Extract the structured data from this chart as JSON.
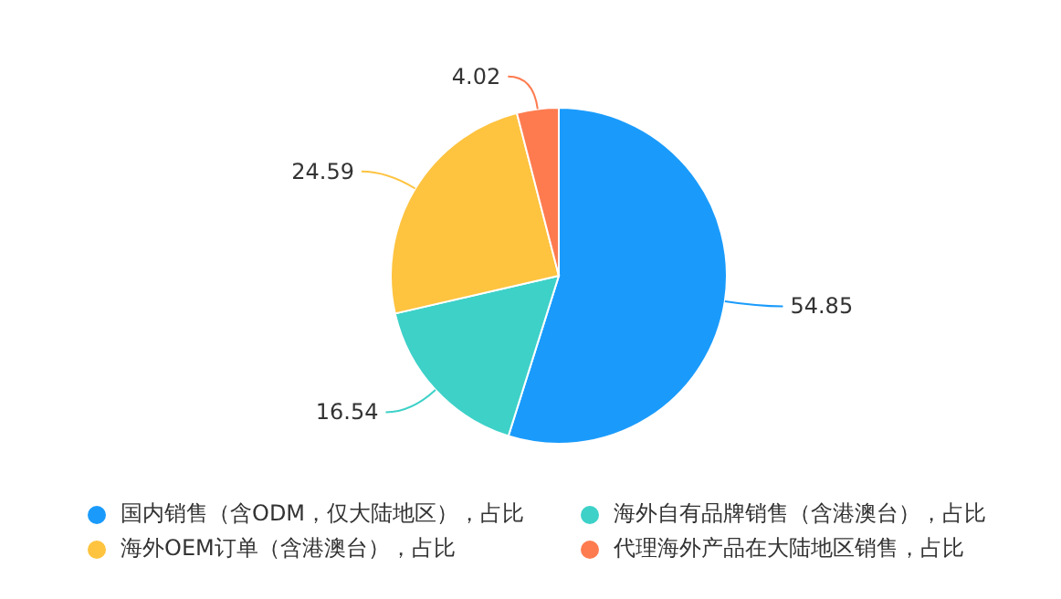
{
  "chart_data": {
    "type": "pie",
    "categories": [
      "国内销售（含ODM，仅大陆地区），占比",
      "海外自有品牌销售（含港澳台），占比",
      "海外OEM订单（含港澳台），占比",
      "代理海外产品在大陆地区销售，占比"
    ],
    "values": [
      54.85,
      16.54,
      24.59,
      4.02
    ],
    "colors": [
      "#1a9bfc",
      "#3dd1c8",
      "#fec33f",
      "#fe7b4f"
    ],
    "data_labels": true,
    "legend": "bottom"
  }
}
